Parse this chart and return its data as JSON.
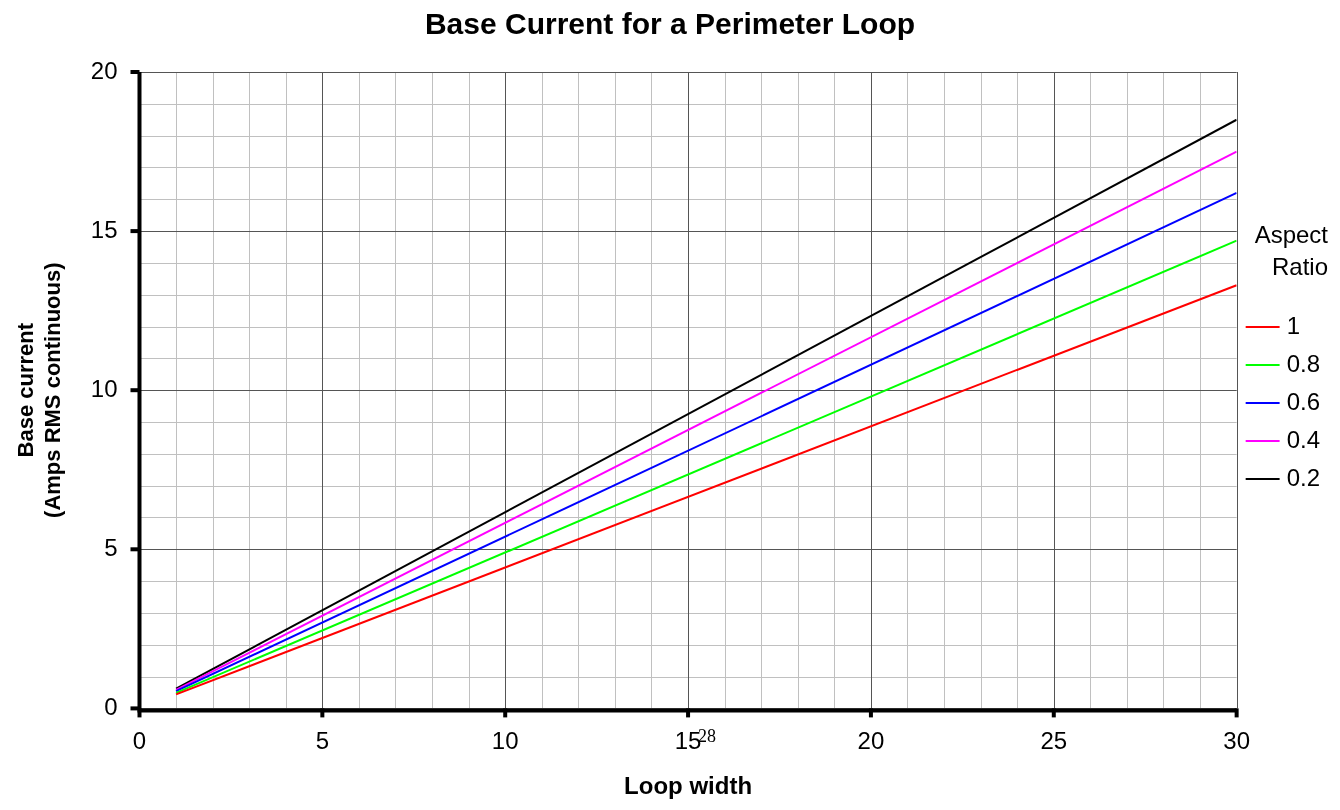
{
  "chart_data": {
    "type": "line",
    "title": "Base Current for a Perimeter Loop",
    "xlabel": "Loop width",
    "ylabel": [
      "Base current",
      "(Amps RMS continuous)"
    ],
    "legend_title": "Aspect Ratio",
    "series": [
      {
        "name": "1",
        "color": "#ff0000",
        "values": [
          0.44,
          13.3
        ]
      },
      {
        "name": "0.8",
        "color": "#00ff00",
        "values": [
          0.49,
          14.7
        ]
      },
      {
        "name": "0.6",
        "color": "#0000ff",
        "values": [
          0.54,
          16.2
        ]
      },
      {
        "name": "0.4",
        "color": "#ff00ff",
        "values": [
          0.58,
          17.5
        ]
      },
      {
        "name": "0.2",
        "color": "#000000",
        "values": [
          0.62,
          18.5
        ]
      }
    ],
    "x": [
      1,
      30
    ],
    "xlim": [
      0,
      30
    ],
    "xticks": [
      0,
      5,
      10,
      15,
      20,
      25,
      30
    ],
    "ylim": [
      0,
      20
    ],
    "yticks": [
      0,
      5,
      10,
      15,
      20
    ],
    "grid": true,
    "legend": "right",
    "marker": "none",
    "line_style": "solid",
    "annotations": [
      "28"
    ]
  }
}
